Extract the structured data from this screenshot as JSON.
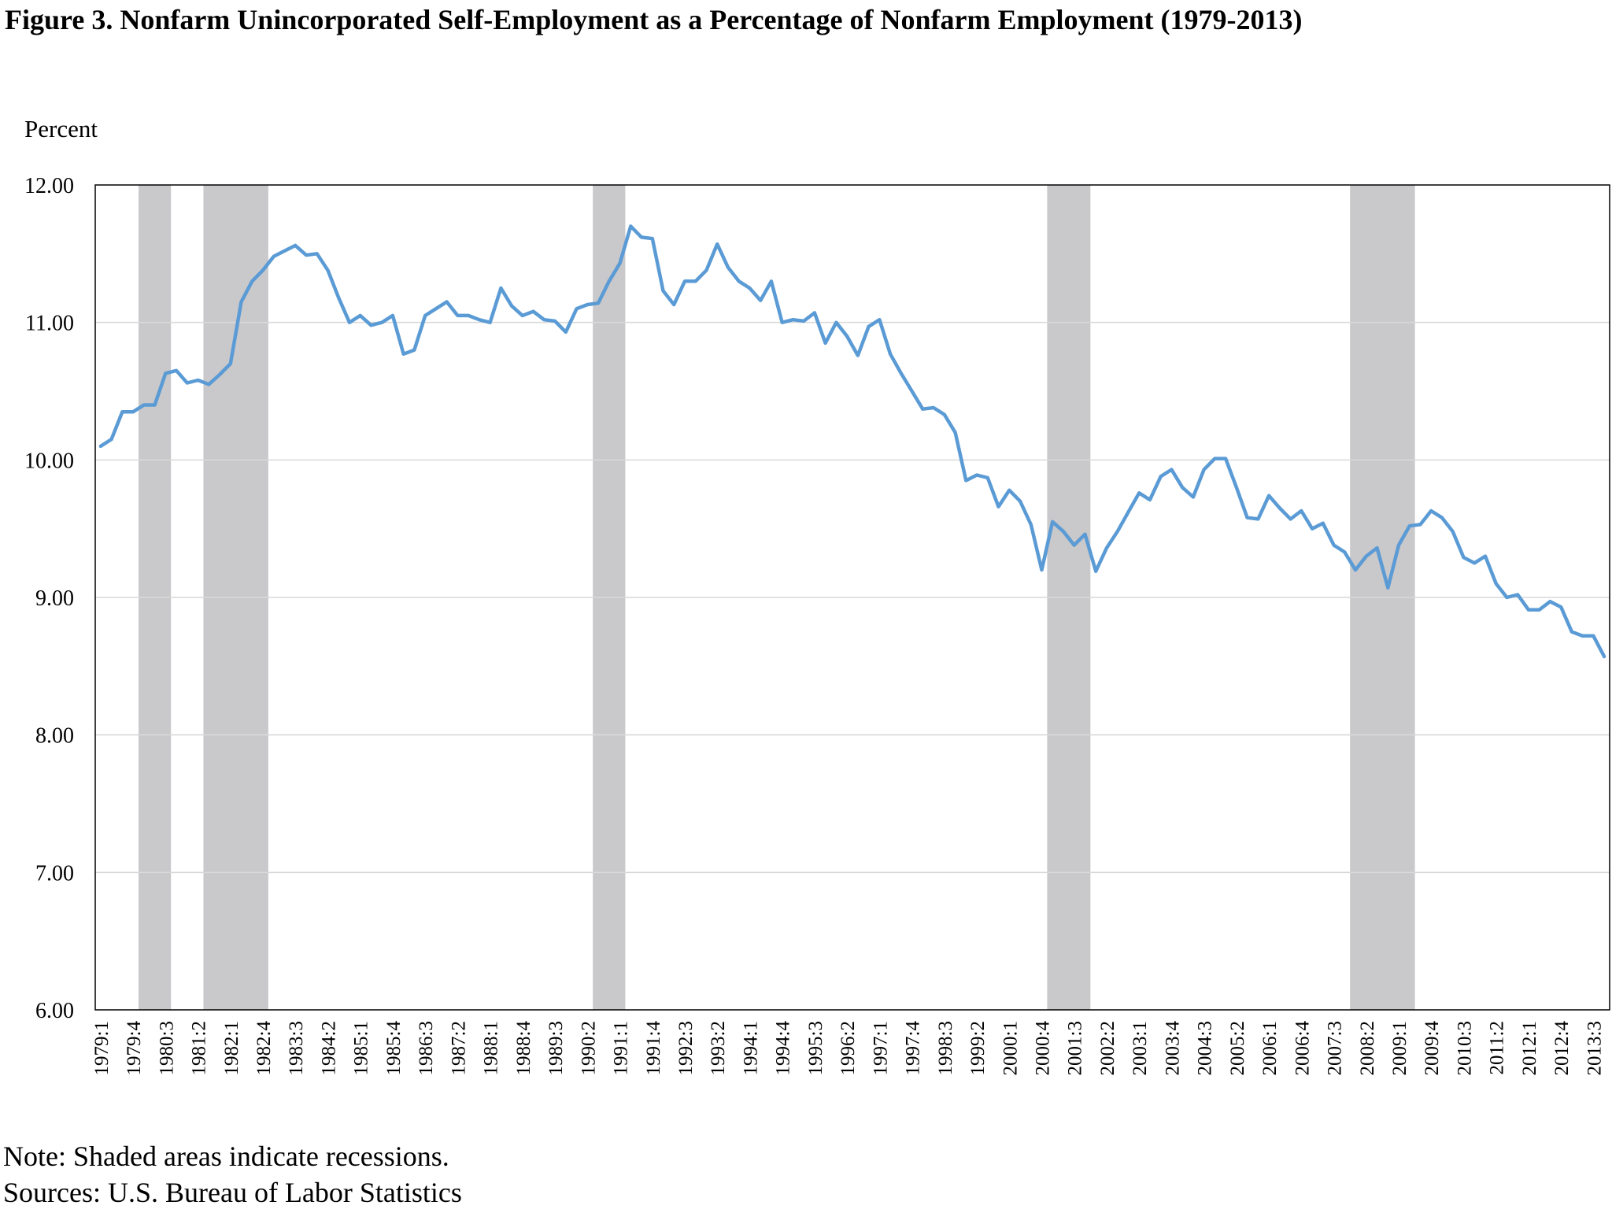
{
  "title": "Figure 3. Nonfarm Unincorporated Self-Employment as a Percentage of Nonfarm Employment (1979-2013)",
  "note": "Note: Shaded areas indicate recessions.",
  "sources": "Sources:  U.S. Bureau of Labor Statistics",
  "colors": {
    "line": "#5b9bd5",
    "recession": "#c9c8cb",
    "grid": "#d9d9d9",
    "axis": "#000000"
  },
  "chart_data": {
    "type": "line",
    "title": "Figure 3. Nonfarm Unincorporated Self-Employment as a Percentage of Nonfarm Employment (1979-2013)",
    "ylabel": "Percent",
    "xlabel": "",
    "ylim": [
      6,
      12
    ],
    "yticks": [
      "6.00",
      "7.00",
      "8.00",
      "9.00",
      "10.00",
      "11.00",
      "12.00"
    ],
    "grid": true,
    "start": {
      "year": 1979,
      "quarter": 1
    },
    "xtick_labels": [
      "1979:1",
      "1979:4",
      "1980:3",
      "1981:2",
      "1982:1",
      "1982:4",
      "1983:3",
      "1984:2",
      "1985:1",
      "1985:4",
      "1986:3",
      "1987:2",
      "1988:1",
      "1988:4",
      "1989:3",
      "1990:2",
      "1991:1",
      "1991:4",
      "1992:3",
      "1993:2",
      "1994:1",
      "1994:4",
      "1995:3",
      "1996:2",
      "1997:1",
      "1997:4",
      "1998:3",
      "1999:2",
      "2000:1",
      "2000:4",
      "2001:3",
      "2002:2",
      "2003:1",
      "2003:4",
      "2004:3",
      "2005:2",
      "2006:1",
      "2006:4",
      "2007:3",
      "2008:2",
      "2009:1",
      "2009:4",
      "2010:3",
      "2011:2",
      "2012:1",
      "2012:4",
      "2013:3"
    ],
    "recessions": [
      {
        "start": "1980:1",
        "end": "1980:3"
      },
      {
        "start": "1981:3",
        "end": "1982:4"
      },
      {
        "start": "1990:3",
        "end": "1991:1"
      },
      {
        "start": "2001:1",
        "end": "2001:4"
      },
      {
        "start": "2008:1",
        "end": "2009:2"
      }
    ],
    "series": [
      {
        "name": "Nonfarm unincorporated self-employment (% of nonfarm employment)",
        "values": [
          10.1,
          10.15,
          10.35,
          10.35,
          10.4,
          10.4,
          10.63,
          10.65,
          10.56,
          10.58,
          10.55,
          10.62,
          10.7,
          11.15,
          11.3,
          11.38,
          11.48,
          11.52,
          11.56,
          11.49,
          11.5,
          11.38,
          11.18,
          11.0,
          11.05,
          10.98,
          11.0,
          11.05,
          10.77,
          10.8,
          11.05,
          11.1,
          11.15,
          11.05,
          11.05,
          11.02,
          11.0,
          11.25,
          11.12,
          11.05,
          11.08,
          11.02,
          11.01,
          10.93,
          11.1,
          11.13,
          11.14,
          11.3,
          11.43,
          11.7,
          11.62,
          11.61,
          11.23,
          11.13,
          11.3,
          11.3,
          11.38,
          11.57,
          11.4,
          11.3,
          11.25,
          11.16,
          11.3,
          11.0,
          11.02,
          11.01,
          11.07,
          10.85,
          11.0,
          10.9,
          10.76,
          10.97,
          11.02,
          10.77,
          10.63,
          10.5,
          10.37,
          10.38,
          10.33,
          10.2,
          9.85,
          9.89,
          9.87,
          9.66,
          9.78,
          9.7,
          9.53,
          9.2,
          9.55,
          9.48,
          9.38,
          9.46,
          9.19,
          9.36,
          9.48,
          9.62,
          9.76,
          9.71,
          9.88,
          9.93,
          9.8,
          9.73,
          9.93,
          10.01,
          10.01,
          9.8,
          9.58,
          9.57,
          9.74,
          9.65,
          9.57,
          9.63,
          9.5,
          9.54,
          9.38,
          9.33,
          9.2,
          9.3,
          9.36,
          9.07,
          9.38,
          9.52,
          9.53,
          9.63,
          9.58,
          9.48,
          9.29,
          9.25,
          9.3,
          9.1,
          9.0,
          9.02,
          8.91,
          8.91,
          8.97,
          8.93,
          8.75,
          8.72,
          8.72,
          8.57
        ]
      }
    ]
  }
}
